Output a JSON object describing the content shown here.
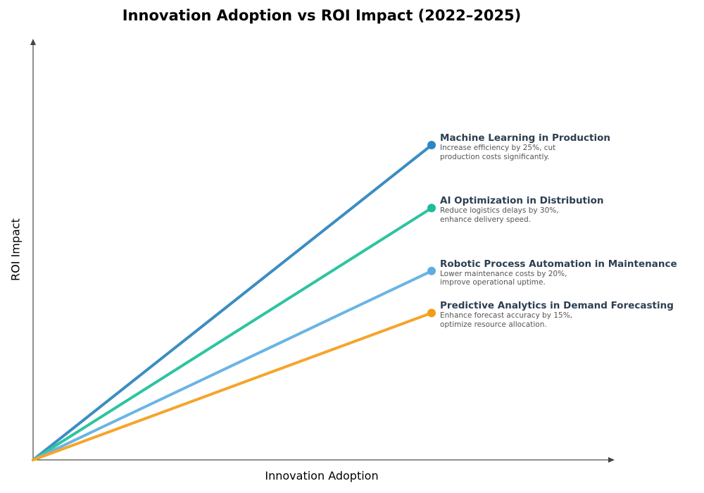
{
  "chart_data": {
    "type": "line",
    "title": "Innovation Adoption vs ROI Impact (2022–2025)",
    "xlabel": "Innovation Adoption",
    "ylabel": "ROI Impact",
    "xlim": [
      0,
      10
    ],
    "ylim": [
      0,
      10
    ],
    "grid": false,
    "ticks": false,
    "series": [
      {
        "name": "Machine Learning in Production",
        "description": "Increase efficiency by 25%, cut production costs significantly.",
        "x": [
          0,
          7
        ],
        "y": [
          0,
          7.5
        ],
        "color": "#2e86c1",
        "line_color": "#3c8dc2"
      },
      {
        "name": "AI Optimization in Distribution",
        "description": "Reduce logistics delays by 30%, enhance delivery speed.",
        "x": [
          0,
          7
        ],
        "y": [
          0,
          6.0
        ],
        "color": "#1abc9c",
        "line_color": "#2ec4a0"
      },
      {
        "name": "Robotic Process Automation in Maintenance",
        "description": "Lower maintenance costs by 20%, improve operational uptime.",
        "x": [
          0,
          7
        ],
        "y": [
          0,
          4.5
        ],
        "color": "#5dade2",
        "line_color": "#6ab4e5"
      },
      {
        "name": "Predictive Analytics in Demand Forecasting",
        "description": "Enhance forecast accuracy by 15%, optimize resource allocation.",
        "x": [
          0,
          7
        ],
        "y": [
          0,
          3.5
        ],
        "color": "#f39c12",
        "line_color": "#f5a52a"
      }
    ]
  }
}
